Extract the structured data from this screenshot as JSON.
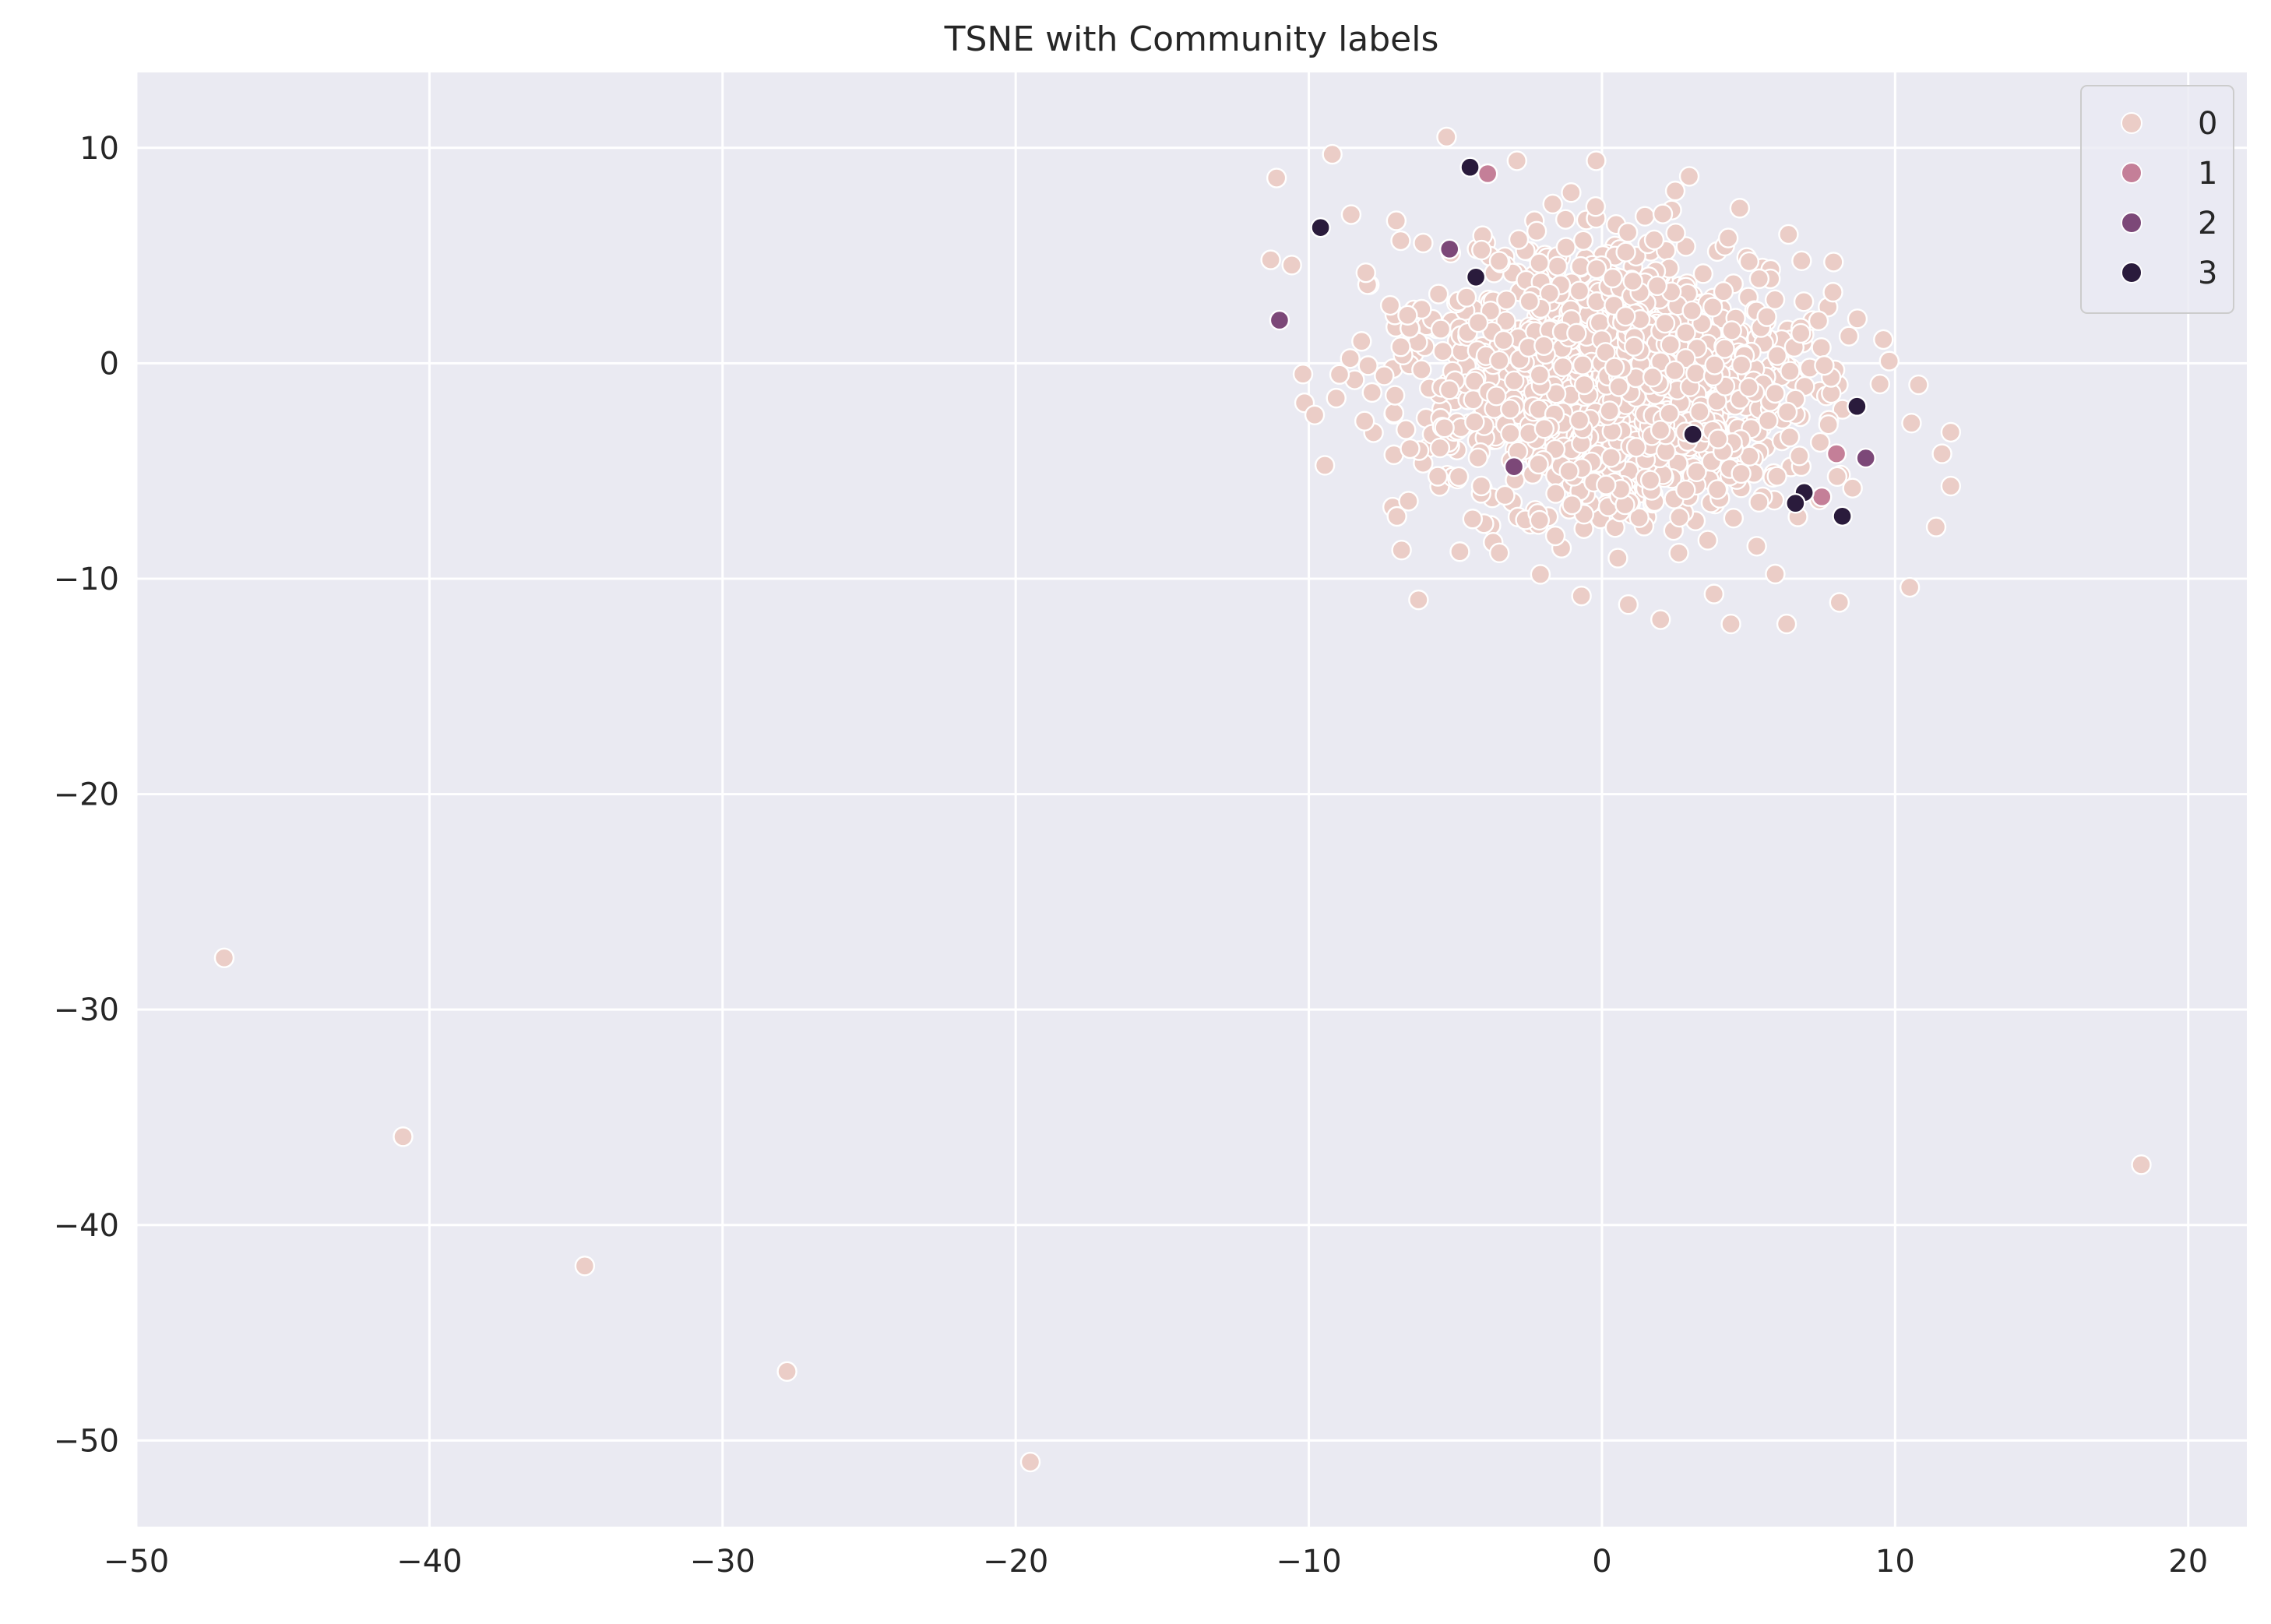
{
  "chart_data": {
    "type": "scatter",
    "title": "TSNE with Community labels",
    "xlabel": "",
    "ylabel": "",
    "xlim": [
      -50,
      22
    ],
    "ylim": [
      -54,
      13.5
    ],
    "x_ticks": [
      -50,
      -40,
      -30,
      -20,
      -10,
      0,
      10,
      20
    ],
    "y_ticks": [
      10,
      0,
      -10,
      -20,
      -30,
      -40,
      -50
    ],
    "x_tick_labels": [
      "−50",
      "−40",
      "−30",
      "−20",
      "−10",
      "0",
      "10",
      "20"
    ],
    "y_tick_labels": [
      "10",
      "0",
      "−10",
      "−20",
      "−30",
      "−40",
      "−50"
    ],
    "grid": true,
    "legend_position": "top-right",
    "legend": {
      "entries": [
        {
          "label": "0",
          "color": "#ebcdc7"
        },
        {
          "label": "1",
          "color": "#c47f98"
        },
        {
          "label": "2",
          "color": "#7c4878"
        },
        {
          "label": "3",
          "color": "#2a1b3c"
        }
      ]
    },
    "background_color": "#eaeaf2",
    "grid_color": "#ffffff",
    "series": [
      {
        "name": "0",
        "color": "#ebcdc7",
        "cluster": {
          "center": [
            0.3,
            -0.8
          ],
          "spread": [
            5.2,
            4.8
          ],
          "rotation_deg": -24,
          "count": 1500,
          "xrange": [
            -11.5,
            12
          ],
          "yrange": [
            -12.2,
            10.6
          ]
        },
        "points": [
          [
            -47.0,
            -27.6
          ],
          [
            -40.9,
            -35.9
          ],
          [
            -34.7,
            -41.9
          ],
          [
            -27.8,
            -46.8
          ],
          [
            -19.5,
            -51.0
          ],
          [
            18.4,
            -37.2
          ],
          [
            -11.1,
            8.6
          ],
          [
            -5.3,
            10.5
          ],
          [
            -9.2,
            9.7
          ],
          [
            -0.2,
            9.4
          ],
          [
            4.7,
            7.2
          ],
          [
            7.9,
            4.7
          ],
          [
            -10.2,
            -0.5
          ],
          [
            -9.8,
            -2.4
          ],
          [
            -6.6,
            -6.4
          ],
          [
            -3.5,
            -8.8
          ],
          [
            -2.1,
            -9.8
          ],
          [
            -0.7,
            -10.8
          ],
          [
            0.9,
            -11.2
          ],
          [
            2.0,
            -11.9
          ],
          [
            4.4,
            -12.1
          ],
          [
            6.3,
            -12.1
          ],
          [
            8.1,
            -11.1
          ],
          [
            10.5,
            -10.4
          ],
          [
            11.4,
            -7.6
          ],
          [
            11.9,
            -5.7
          ],
          [
            11.6,
            -4.2
          ],
          [
            11.9,
            -3.2
          ],
          [
            10.8,
            -1.0
          ],
          [
            9.8,
            0.1
          ],
          [
            9.6,
            1.1
          ],
          [
            2.5,
            8.0
          ],
          [
            -2.9,
            9.4
          ],
          [
            -11.3,
            4.8
          ]
        ]
      },
      {
        "name": "1",
        "color": "#c47f98",
        "points": [
          [
            -3.9,
            8.8
          ],
          [
            7.5,
            -6.2
          ],
          [
            8.0,
            -4.2
          ]
        ]
      },
      {
        "name": "2",
        "color": "#7c4878",
        "points": [
          [
            -11.0,
            2.0
          ],
          [
            -5.2,
            5.3
          ],
          [
            -3.0,
            -4.8
          ],
          [
            9.0,
            -4.4
          ]
        ]
      },
      {
        "name": "3",
        "color": "#2a1b3c",
        "points": [
          [
            -9.6,
            6.3
          ],
          [
            -4.3,
            4.0
          ],
          [
            -4.5,
            9.1
          ],
          [
            3.1,
            -3.3
          ],
          [
            6.9,
            -6.0
          ],
          [
            8.2,
            -7.1
          ],
          [
            8.7,
            -2.0
          ],
          [
            6.6,
            -6.5
          ]
        ]
      }
    ]
  }
}
